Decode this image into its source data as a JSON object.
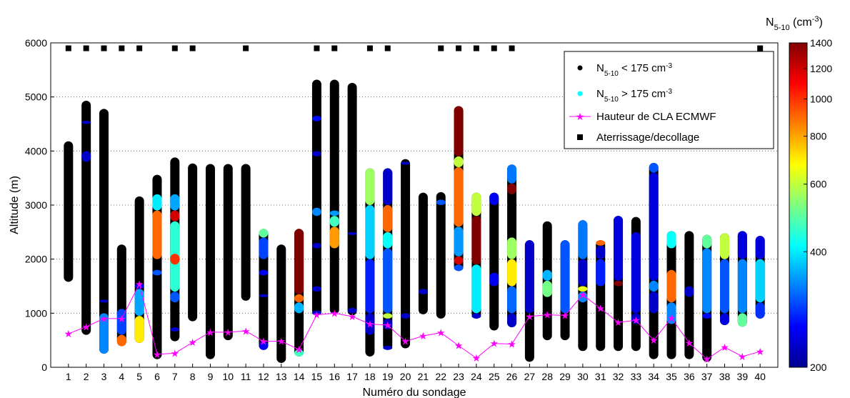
{
  "chart_data": {
    "type": "scatter",
    "xlabel": "Numéro du sondage",
    "ylabel": "Altitude (m)",
    "xlim": [
      0,
      41
    ],
    "ylim": [
      0,
      6000
    ],
    "xticks": [
      1,
      2,
      3,
      4,
      5,
      6,
      7,
      8,
      9,
      10,
      11,
      12,
      13,
      14,
      15,
      16,
      17,
      18,
      19,
      20,
      21,
      22,
      23,
      24,
      25,
      26,
      27,
      28,
      29,
      30,
      31,
      32,
      33,
      34,
      35,
      36,
      37,
      38,
      39,
      40
    ],
    "yticks": [
      0,
      1000,
      2000,
      3000,
      4000,
      5000,
      6000
    ],
    "grid": true,
    "legend_position": "top-right",
    "legend": {
      "low_main": "N",
      "low_sub": "5-10",
      "low_rest": " < 175 cm",
      "low_sup": "-3",
      "high_main": "N",
      "high_sub": "5-10",
      "high_rest": " > 175 cm",
      "high_sup": "-3",
      "pbl": "Hauteur de CLA ECMWF",
      "landing": "Aterrissage/decollage"
    },
    "colorbar": {
      "title_main": "N",
      "title_sub": "5-10",
      "title_rest": " (cm",
      "title_sup": "-3",
      "title_end": ")",
      "ticks": [
        200,
        400,
        600,
        800,
        1000,
        1200,
        1400
      ],
      "range": [
        200,
        1400
      ],
      "scale": "log",
      "colormap": "jet"
    },
    "series": [
      {
        "name": "Hauteur de CLA ECMWF",
        "kind": "line-star",
        "color": "#ff00ff",
        "x": [
          1,
          2,
          3,
          4,
          5,
          6,
          7,
          8,
          9,
          10,
          11,
          12,
          13,
          14,
          15,
          16,
          17,
          18,
          19,
          20,
          21,
          22,
          23,
          24,
          25,
          26,
          27,
          28,
          29,
          30,
          31,
          32,
          33,
          34,
          35,
          36,
          37,
          38,
          39,
          40
        ],
        "y": [
          620,
          750,
          900,
          900,
          1540,
          240,
          260,
          460,
          650,
          650,
          670,
          480,
          480,
          330,
          970,
          1000,
          940,
          800,
          780,
          480,
          580,
          640,
          400,
          170,
          440,
          430,
          940,
          970,
          960,
          1340,
          1090,
          830,
          870,
          500,
          910,
          450,
          150,
          370,
          200,
          290
        ]
      },
      {
        "name": "Aterrissage/decollage",
        "kind": "square",
        "color": "#000000",
        "x": [
          1,
          2,
          3,
          4,
          5,
          7,
          8,
          11,
          15,
          16,
          18,
          19,
          22,
          23,
          24,
          25,
          26,
          40
        ],
        "y": [
          5900,
          5900,
          5900,
          5900,
          5900,
          5900,
          5900,
          5900,
          5900,
          5900,
          5900,
          5900,
          5900,
          5900,
          5900,
          5900,
          5900,
          5900
        ]
      }
    ],
    "profiles": [
      {
        "x": 1,
        "y0": 1580,
        "y1": 4180,
        "segments": []
      },
      {
        "x": 2,
        "y0": 600,
        "y1": 4930,
        "segments": [
          [
            3800,
            4000,
            230
          ],
          [
            4500,
            4560,
            230
          ]
        ]
      },
      {
        "x": 3,
        "y0": 250,
        "y1": 4780,
        "segments": [
          [
            250,
            1000,
            330
          ],
          [
            1200,
            1250,
            230
          ]
        ]
      },
      {
        "x": 4,
        "y0": 390,
        "y1": 2270,
        "segments": [
          [
            390,
            600,
            900
          ],
          [
            600,
            1080,
            290
          ]
        ]
      },
      {
        "x": 5,
        "y0": 450,
        "y1": 3160,
        "segments": [
          [
            450,
            950,
            700
          ],
          [
            950,
            1450,
            350
          ],
          [
            1450,
            1550,
            250
          ]
        ]
      },
      {
        "x": 6,
        "y0": 150,
        "y1": 3560,
        "segments": [
          [
            1700,
            1800,
            300
          ],
          [
            2000,
            2900,
            900
          ],
          [
            2900,
            3200,
            400
          ]
        ]
      },
      {
        "x": 7,
        "y0": 480,
        "y1": 3880,
        "segments": [
          [
            660,
            740,
            230
          ],
          [
            1200,
            1400,
            300
          ],
          [
            1400,
            2700,
            450
          ],
          [
            1900,
            2100,
            1000
          ],
          [
            2700,
            2900,
            1200
          ],
          [
            2900,
            3200,
            350
          ]
        ]
      },
      {
        "x": 8,
        "y0": 850,
        "y1": 3770,
        "segments": []
      },
      {
        "x": 9,
        "y0": 150,
        "y1": 3760,
        "segments": []
      },
      {
        "x": 10,
        "y0": 500,
        "y1": 3760,
        "segments": []
      },
      {
        "x": 11,
        "y0": 1230,
        "y1": 3760,
        "segments": []
      },
      {
        "x": 12,
        "y0": 320,
        "y1": 2560,
        "segments": [
          [
            320,
            480,
            250
          ],
          [
            1300,
            1350,
            230
          ],
          [
            1700,
            1800,
            250
          ],
          [
            2000,
            2400,
            290
          ],
          [
            2400,
            2560,
            500
          ]
        ]
      },
      {
        "x": 13,
        "y0": 80,
        "y1": 2270,
        "segments": []
      },
      {
        "x": 14,
        "y0": 200,
        "y1": 2560,
        "segments": [
          [
            200,
            330,
            470
          ],
          [
            1000,
            1200,
            360
          ],
          [
            1200,
            1350,
            900
          ],
          [
            1350,
            2560,
            1400
          ]
        ]
      },
      {
        "x": 15,
        "y0": 960,
        "y1": 5320,
        "segments": [
          [
            960,
            1050,
            230
          ],
          [
            1400,
            1500,
            230
          ],
          [
            2200,
            2300,
            230
          ],
          [
            2800,
            2950,
            330
          ],
          [
            3900,
            4000,
            230
          ],
          [
            4550,
            4650,
            260
          ]
        ]
      },
      {
        "x": 16,
        "y0": 980,
        "y1": 5320,
        "segments": [
          [
            2200,
            2600,
            820
          ],
          [
            2600,
            2800,
            470
          ],
          [
            2800,
            2900,
            340
          ]
        ]
      },
      {
        "x": 17,
        "y0": 960,
        "y1": 5260,
        "segments": [
          [
            1000,
            1100,
            230
          ],
          [
            2450,
            2500,
            230
          ]
        ]
      },
      {
        "x": 18,
        "y0": 200,
        "y1": 3680,
        "segments": [
          [
            600,
            1000,
            230
          ],
          [
            1000,
            2000,
            270
          ],
          [
            2000,
            3000,
            380
          ],
          [
            3000,
            3680,
            560
          ]
        ]
      },
      {
        "x": 19,
        "y0": 320,
        "y1": 3680,
        "segments": [
          [
            320,
            400,
            230
          ],
          [
            700,
            900,
            230
          ],
          [
            900,
            1000,
            600
          ],
          [
            1000,
            2200,
            300
          ],
          [
            2200,
            2500,
            420
          ],
          [
            2500,
            3000,
            900
          ],
          [
            3000,
            3680,
            230
          ]
        ]
      },
      {
        "x": 20,
        "y0": 350,
        "y1": 3850,
        "segments": [
          [
            900,
            1000,
            230
          ],
          [
            3750,
            3800,
            230
          ]
        ]
      },
      {
        "x": 21,
        "y0": 980,
        "y1": 3230,
        "segments": [
          [
            1350,
            1450,
            230
          ]
        ]
      },
      {
        "x": 22,
        "y0": 900,
        "y1": 3240,
        "segments": [
          [
            3000,
            3100,
            300
          ]
        ]
      },
      {
        "x": 23,
        "y0": 1780,
        "y1": 4830,
        "segments": [
          [
            1780,
            1900,
            300
          ],
          [
            1900,
            2050,
            1200
          ],
          [
            2050,
            2600,
            340
          ],
          [
            2600,
            3700,
            900
          ],
          [
            3700,
            3900,
            600
          ],
          [
            3900,
            4830,
            1400
          ]
        ]
      },
      {
        "x": 24,
        "y0": 900,
        "y1": 3230,
        "segments": [
          [
            900,
            1000,
            230
          ],
          [
            1000,
            1900,
            400
          ],
          [
            1900,
            2800,
            1400
          ],
          [
            2800,
            3230,
            600
          ]
        ]
      },
      {
        "x": 25,
        "y0": 680,
        "y1": 3230,
        "segments": [
          [
            1500,
            1750,
            250
          ],
          [
            3000,
            3230,
            250
          ]
        ]
      },
      {
        "x": 26,
        "y0": 740,
        "y1": 3750,
        "segments": [
          [
            740,
            1000,
            230
          ],
          [
            1000,
            1500,
            310
          ],
          [
            1500,
            2000,
            700
          ],
          [
            2000,
            2400,
            560
          ],
          [
            3200,
            3400,
            1400
          ],
          [
            3400,
            3750,
            320
          ]
        ]
      },
      {
        "x": 27,
        "y0": 100,
        "y1": 2350,
        "segments": [
          [
            1000,
            2350,
            230
          ]
        ]
      },
      {
        "x": 28,
        "y0": 500,
        "y1": 2700,
        "segments": [
          [
            1300,
            1600,
            520
          ],
          [
            1600,
            1800,
            360
          ]
        ]
      },
      {
        "x": 29,
        "y0": 500,
        "y1": 2350,
        "segments": [
          [
            1000,
            2350,
            300
          ]
        ]
      },
      {
        "x": 30,
        "y0": 300,
        "y1": 2720,
        "segments": [
          [
            1200,
            1400,
            330
          ],
          [
            1400,
            1500,
            650
          ],
          [
            1500,
            2000,
            230
          ],
          [
            2000,
            2720,
            320
          ]
        ]
      },
      {
        "x": 31,
        "y0": 300,
        "y1": 2350,
        "segments": [
          [
            1500,
            2000,
            270
          ],
          [
            2000,
            2250,
            230
          ],
          [
            2250,
            2350,
            900
          ]
        ]
      },
      {
        "x": 32,
        "y0": 300,
        "y1": 2800,
        "segments": [
          [
            1500,
            1600,
            1400
          ],
          [
            1600,
            2800,
            240
          ]
        ]
      },
      {
        "x": 33,
        "y0": 300,
        "y1": 2780,
        "segments": [
          [
            800,
            1000,
            230
          ],
          [
            1000,
            2500,
            240
          ]
        ]
      },
      {
        "x": 34,
        "y0": 150,
        "y1": 3780,
        "segments": [
          [
            1000,
            1400,
            230
          ],
          [
            1400,
            1600,
            330
          ],
          [
            1600,
            3600,
            240
          ],
          [
            3600,
            3780,
            300
          ]
        ]
      },
      {
        "x": 35,
        "y0": 150,
        "y1": 2520,
        "segments": [
          [
            800,
            1200,
            330
          ],
          [
            1200,
            1800,
            900
          ],
          [
            2200,
            2520,
            420
          ]
        ]
      },
      {
        "x": 36,
        "y0": 150,
        "y1": 2520,
        "segments": [
          [
            1300,
            1500,
            230
          ]
        ]
      },
      {
        "x": 37,
        "y0": 100,
        "y1": 2450,
        "segments": [
          [
            900,
            1000,
            260
          ],
          [
            1000,
            2200,
            330
          ],
          [
            2200,
            2450,
            500
          ]
        ]
      },
      {
        "x": 38,
        "y0": 780,
        "y1": 2480,
        "segments": [
          [
            780,
            1000,
            240
          ],
          [
            1000,
            2000,
            300
          ],
          [
            2000,
            2480,
            600
          ]
        ]
      },
      {
        "x": 39,
        "y0": 750,
        "y1": 2520,
        "segments": [
          [
            750,
            1000,
            500
          ],
          [
            1000,
            2000,
            330
          ],
          [
            2000,
            2520,
            240
          ]
        ]
      },
      {
        "x": 40,
        "y0": 900,
        "y1": 2430,
        "segments": [
          [
            900,
            1200,
            280
          ],
          [
            1200,
            2000,
            380
          ],
          [
            2000,
            2430,
            240
          ]
        ]
      }
    ]
  }
}
